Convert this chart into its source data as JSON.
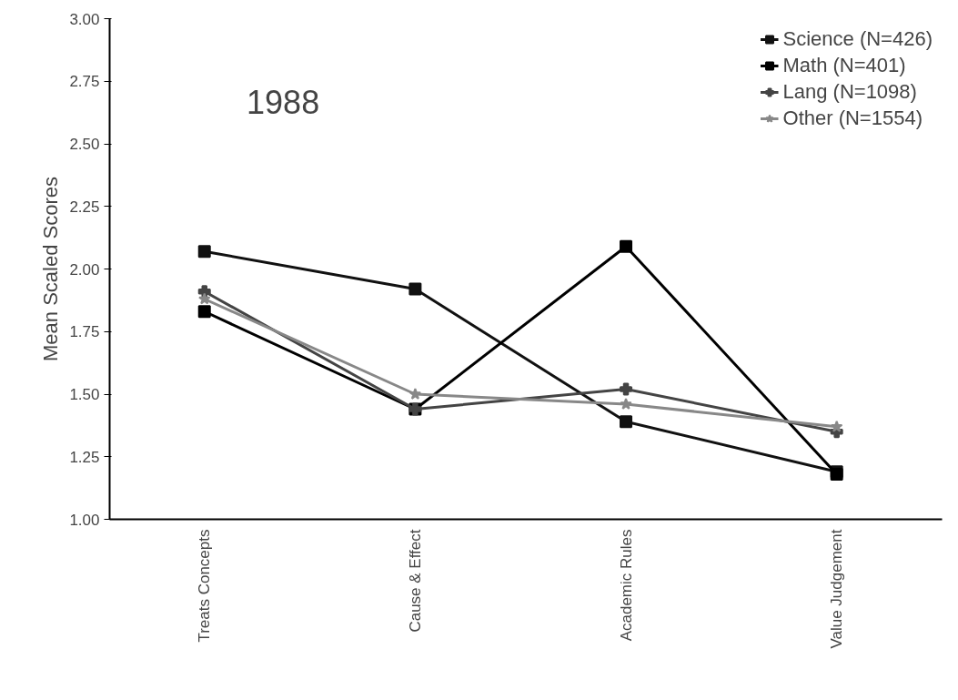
{
  "chart_data": {
    "type": "line",
    "title": "1988",
    "ylabel": "Mean Scaled Scores",
    "categories": [
      "Treats Concepts",
      "Cause & Effect",
      "Academic Rules",
      "Value Judgement"
    ],
    "ylim": [
      1.0,
      3.0
    ],
    "yticks": [
      {
        "value": 1,
        "label": "1.00"
      },
      {
        "value": 1.25,
        "label": "1.25"
      },
      {
        "value": 1.5,
        "label": "1.50"
      },
      {
        "value": 1.75,
        "label": "1.75"
      },
      {
        "value": 2,
        "label": "2.00"
      },
      {
        "value": 2.25,
        "label": "2.25"
      },
      {
        "value": 2.5,
        "label": "2.50"
      },
      {
        "value": 2.75,
        "label": "2.75"
      },
      {
        "value": 3,
        "label": "3.00"
      }
    ],
    "series": [
      {
        "name": "Science (N=426)",
        "color": "#111111",
        "marker": "square",
        "values": [
          2.07,
          1.92,
          1.39,
          1.19
        ]
      },
      {
        "name": "Math (N=401)",
        "color": "#000000",
        "marker": "square",
        "values": [
          1.83,
          1.44,
          2.09,
          1.18
        ]
      },
      {
        "name": "Lang (N=1098)",
        "color": "#444444",
        "marker": "cross",
        "values": [
          1.91,
          1.44,
          1.52,
          1.35
        ]
      },
      {
        "name": "Other (N=1554)",
        "color": "#888888",
        "marker": "star",
        "values": [
          1.88,
          1.5,
          1.46,
          1.37
        ]
      }
    ],
    "grid": false,
    "legend": "top right"
  }
}
